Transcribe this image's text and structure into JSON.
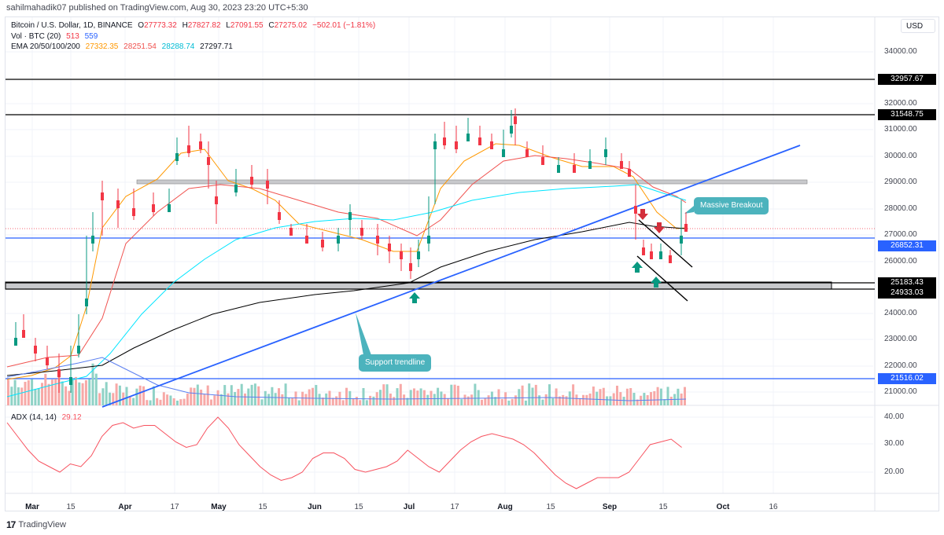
{
  "publisher": {
    "text": "sahilmahadik07 published on TradingView.com, Aug 30, 2023 23:20 UTC+5:30"
  },
  "legend": {
    "symbol": "Bitcoin / U.S. Dollar, 1D, BINANCE",
    "open_label": "O",
    "open": "27773.32",
    "high_label": "H",
    "high": "27827.82",
    "low_label": "L",
    "low": "27091.55",
    "close_label": "C",
    "close": "27275.02",
    "change": "−502.01 (−1.81%)",
    "vol_label": "Vol · BTC (20)",
    "vol_1": "513",
    "vol_2": "559",
    "ema_label": "EMA 20/50/100/200",
    "ema20": "27332.35",
    "ema50": "28251.54",
    "ema100": "28288.74",
    "ema200": "27297.71"
  },
  "currency_button": {
    "label": "USD"
  },
  "price_axis": {
    "ticks": [
      "34000.00",
      "32000.00",
      "31000.00",
      "30000.00",
      "29000.00",
      "28000.00",
      "27000.00",
      "26000.00",
      "24000.00",
      "23000.00",
      "22000.00",
      "21000.00"
    ],
    "tags": [
      {
        "value": "32957.67",
        "color": "#000000"
      },
      {
        "value": "31548.75",
        "color": "#000000"
      },
      {
        "value": "26852.31",
        "color": "#2962ff"
      },
      {
        "value": "25183.43",
        "color": "#000000"
      },
      {
        "value": "24933.03",
        "color": "#000000"
      },
      {
        "value": "21516.02",
        "color": "#2962ff"
      }
    ]
  },
  "adx_axis": {
    "ticks": [
      "40.00",
      "30.00",
      "20.00"
    ]
  },
  "adx_legend": {
    "label": "ADX (14, 14)",
    "value": "29.12"
  },
  "time_axis": {
    "labels": [
      {
        "text": "Mar",
        "major": true
      },
      {
        "text": "15",
        "major": false
      },
      {
        "text": "Apr",
        "major": true
      },
      {
        "text": "17",
        "major": false
      },
      {
        "text": "May",
        "major": true
      },
      {
        "text": "15",
        "major": false
      },
      {
        "text": "Jun",
        "major": true
      },
      {
        "text": "15",
        "major": false
      },
      {
        "text": "Jul",
        "major": true
      },
      {
        "text": "17",
        "major": false
      },
      {
        "text": "Aug",
        "major": true
      },
      {
        "text": "15",
        "major": false
      },
      {
        "text": "Sep",
        "major": true
      },
      {
        "text": "15",
        "major": false
      },
      {
        "text": "Oct",
        "major": true
      },
      {
        "text": "16",
        "major": false
      }
    ]
  },
  "annotations": {
    "breakout": "Massive Breakout",
    "trendline": "Support trendline"
  },
  "footer": {
    "brand": "TradingView",
    "logo": "17"
  },
  "colors": {
    "up": "#089981",
    "down": "#f23645",
    "ema20": "#ff9800",
    "ema50": "#f05350",
    "ema100": "#00e5ff",
    "ema200": "#000000",
    "trendline": "#2962ff",
    "adx": "#f7525f",
    "callout": "#4cb3bd",
    "zone": "#c8c9cc"
  },
  "chart_data": {
    "type": "candlestick",
    "title": "Bitcoin / U.S. Dollar, 1D, BINANCE",
    "xlabel": "",
    "ylabel": "USD",
    "ylim": [
      20400,
      34800
    ],
    "x": [
      "Mar",
      "15",
      "Apr",
      "17",
      "May",
      "15",
      "Jun",
      "15",
      "Jul",
      "17",
      "Aug",
      "15",
      "Sep",
      "15",
      "Oct",
      "16"
    ],
    "ohlc_last": {
      "open": 27773.32,
      "high": 27827.82,
      "low": 27091.55,
      "close": 27275.02,
      "change": -502.01,
      "change_pct": -1.81
    },
    "horizontal_levels": [
      32957.67,
      31548.75,
      26852.31,
      25183.43,
      24933.03,
      21516.02
    ],
    "resistance_zone": [
      29000,
      29100
    ],
    "support_zone": [
      24933.03,
      25183.43
    ],
    "series": [
      {
        "name": "EMA 20",
        "last": 27332.35
      },
      {
        "name": "EMA 50",
        "last": 28251.54
      },
      {
        "name": "EMA 100",
        "last": 28288.74
      },
      {
        "name": "EMA 200",
        "last": 27297.71
      },
      {
        "name": "Vol BTC (20)",
        "values": [
          513,
          559
        ]
      },
      {
        "name": "ADX (14,14)",
        "last": 29.12,
        "ylim": [
          12,
          44
        ],
        "approx_path": [
          38,
          33,
          28,
          24,
          22,
          20,
          23,
          22,
          26,
          33,
          37,
          38,
          36,
          37,
          37,
          34,
          31,
          29,
          30,
          36,
          40,
          36,
          30,
          26,
          22,
          19,
          17,
          18,
          20,
          25,
          27,
          27,
          25,
          21,
          20,
          21,
          22,
          24,
          28,
          25,
          22,
          20,
          24,
          28,
          31,
          33,
          34,
          33,
          32,
          30,
          27,
          23,
          19,
          16,
          14,
          16,
          18,
          18,
          18,
          20,
          25,
          30,
          31,
          32,
          29
        ]
      }
    ],
    "annotations": [
      "Massive Breakout",
      "Support trendline"
    ],
    "legend_position": "top-left",
    "grid": true
  }
}
